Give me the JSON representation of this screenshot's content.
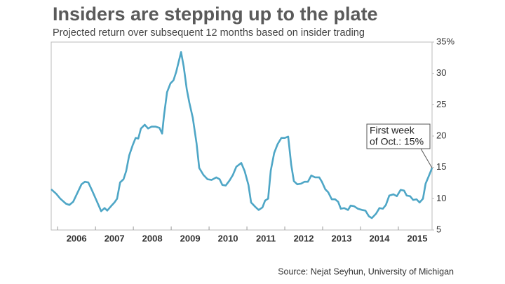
{
  "chart_data": {
    "type": "line",
    "title": "Insiders are stepping up to the plate",
    "subtitle": "Projected return over subsequent 12 months based on insider trading",
    "source": "Source: Nejat Seyhun, University of Michigan",
    "annotation": [
      "First week",
      "of Oct.: 15%"
    ],
    "xlim": [
      2005.83,
      2015.89
    ],
    "xticks": [
      2006,
      2007,
      2008,
      2009,
      2010,
      2011,
      2012,
      2013,
      2014,
      2015
    ],
    "ylim": [
      5,
      35
    ],
    "yticks": [
      5,
      10,
      15,
      20,
      25,
      30,
      {
        "value": 35,
        "label": "35%"
      }
    ],
    "grid": false,
    "series": [
      {
        "color": "#4ea6c6",
        "x": [
          2005.83,
          2005.96,
          2006.07,
          2006.22,
          2006.31,
          2006.41,
          2006.52,
          2006.63,
          2006.72,
          2006.81,
          2006.91,
          2007.02,
          2007.15,
          2007.24,
          2007.31,
          2007.41,
          2007.5,
          2007.57,
          2007.65,
          2007.74,
          2007.81,
          2007.89,
          2007.98,
          2008.06,
          2008.13,
          2008.2,
          2008.3,
          2008.39,
          2008.48,
          2008.59,
          2008.69,
          2008.76,
          2008.81,
          2008.89,
          2008.98,
          2009.06,
          2009.13,
          2009.26,
          2009.33,
          2009.41,
          2009.48,
          2009.57,
          2009.67,
          2009.74,
          2009.85,
          2009.96,
          2010.07,
          2010.19,
          2010.28,
          2010.35,
          2010.44,
          2010.54,
          2010.63,
          2010.72,
          2010.85,
          2010.94,
          2011.04,
          2011.11,
          2011.22,
          2011.31,
          2011.41,
          2011.48,
          2011.56,
          2011.63,
          2011.72,
          2011.81,
          2011.91,
          2012.0,
          2012.09,
          2012.17,
          2012.24,
          2012.33,
          2012.43,
          2012.52,
          2012.61,
          2012.7,
          2012.8,
          2012.91,
          2012.98,
          2013.07,
          2013.15,
          2013.24,
          2013.33,
          2013.41,
          2013.48,
          2013.57,
          2013.67,
          2013.74,
          2013.83,
          2013.93,
          2014.04,
          2014.13,
          2014.22,
          2014.3,
          2014.41,
          2014.5,
          2014.59,
          2014.67,
          2014.76,
          2014.87,
          2014.96,
          2015.06,
          2015.15,
          2015.22,
          2015.31,
          2015.39,
          2015.48,
          2015.56,
          2015.65,
          2015.72,
          2015.81,
          2015.89
        ],
        "values": [
          11.5,
          10.8,
          10.0,
          9.2,
          9.0,
          9.5,
          10.9,
          12.3,
          12.7,
          12.6,
          11.3,
          9.8,
          8.0,
          8.5,
          8.1,
          8.8,
          9.4,
          10.0,
          12.6,
          13.1,
          14.4,
          16.9,
          18.5,
          19.7,
          19.6,
          21.2,
          21.8,
          21.2,
          21.5,
          21.5,
          21.3,
          20.4,
          23.3,
          27.0,
          28.4,
          28.9,
          30.2,
          33.4,
          31.1,
          27.5,
          25.3,
          22.9,
          18.8,
          14.9,
          13.8,
          13.1,
          13.0,
          13.4,
          13.1,
          12.2,
          12.1,
          12.9,
          13.8,
          15.1,
          15.7,
          14.4,
          12.2,
          9.4,
          8.7,
          8.2,
          8.6,
          9.7,
          10.0,
          14.5,
          17.3,
          18.7,
          19.7,
          19.7,
          19.9,
          15.4,
          12.8,
          12.3,
          12.4,
          12.7,
          12.7,
          13.7,
          13.4,
          13.4,
          12.7,
          11.5,
          11.0,
          9.9,
          9.9,
          9.5,
          8.4,
          8.5,
          8.2,
          8.9,
          8.8,
          8.4,
          8.2,
          8.1,
          7.2,
          6.9,
          7.6,
          8.5,
          8.4,
          9.0,
          10.5,
          10.7,
          10.4,
          11.4,
          11.3,
          10.5,
          10.4,
          9.8,
          9.9,
          9.4,
          10.0,
          12.4,
          13.7,
          14.9
        ]
      }
    ]
  }
}
